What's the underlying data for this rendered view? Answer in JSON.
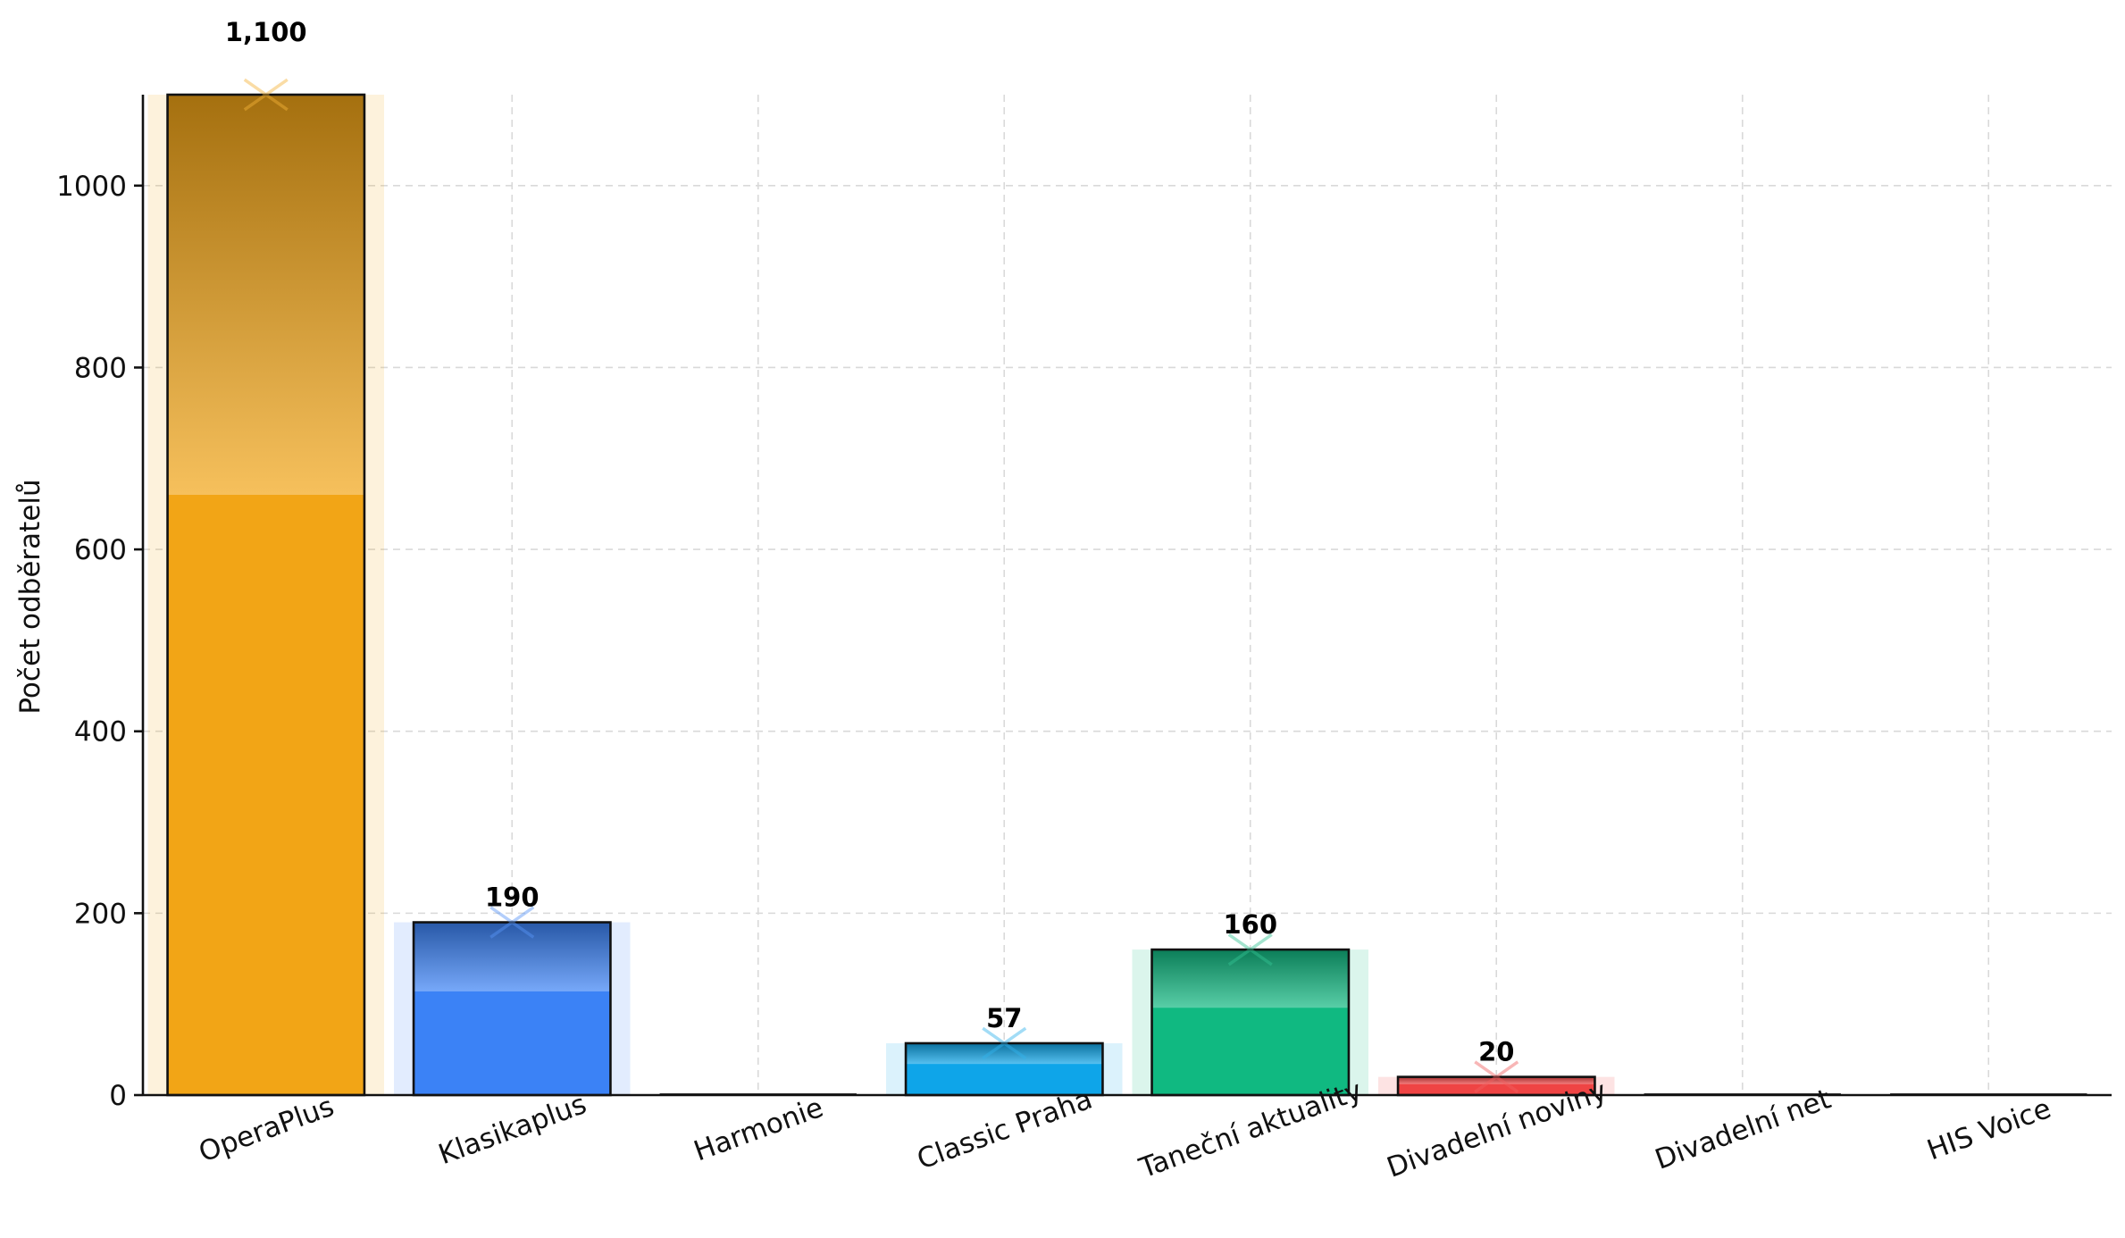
{
  "chart_data": {
    "type": "bar",
    "title": "",
    "xlabel": "",
    "ylabel": "Počet odběratelů",
    "categories": [
      "OperaPlus",
      "Klasikaplus",
      "Harmonie",
      "Classic Praha",
      "Taneční aktuality",
      "Divadelní noviny",
      "Divadelní net",
      "HIS Voice"
    ],
    "values": [
      1100,
      190,
      0,
      57,
      160,
      20,
      0,
      0
    ],
    "data_labels": [
      "1,100",
      "190",
      "",
      "57",
      "160",
      "20",
      "",
      ""
    ],
    "colors": [
      "#f2a516",
      "#3b82f6",
      "#6b7280",
      "#0ea5e9",
      "#10b981",
      "#ef4444",
      "#6b7280",
      "#6b7280"
    ],
    "ylim": [
      0,
      1100
    ],
    "yticks": [
      0,
      200,
      400,
      600,
      800,
      1000
    ],
    "ytick_labels": [
      "0",
      "200",
      "400",
      "600",
      "800",
      "1000"
    ],
    "xtick_rotation_deg": -20,
    "grid": true,
    "legend": "none"
  }
}
